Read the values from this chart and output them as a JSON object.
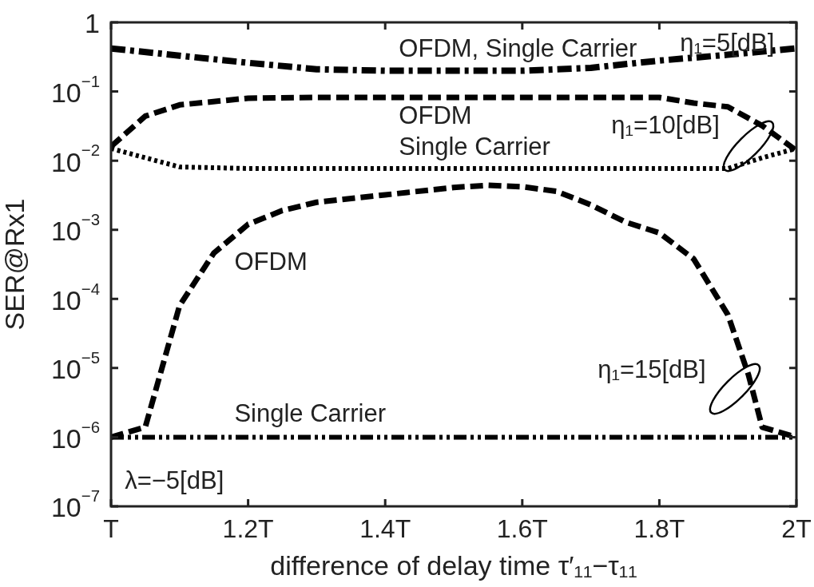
{
  "chart_data": {
    "type": "line",
    "xlabel": "difference of delay time τ′₁₁−τ₁₁",
    "ylabel": "SER@Rx1",
    "log": "y",
    "grid": false,
    "legend": false,
    "marker": "none",
    "xlim": [
      1,
      2
    ],
    "xticks": [
      {
        "value": 1,
        "label": "T"
      },
      {
        "value": 1.2,
        "label": "1.2T"
      },
      {
        "value": 1.4,
        "label": "1.4T"
      },
      {
        "value": 1.6,
        "label": "1.6T"
      },
      {
        "value": 1.8,
        "label": "1.8T"
      },
      {
        "value": 2,
        "label": "2T"
      }
    ],
    "ylim": [
      1e-07,
      1
    ],
    "yticks": [
      {
        "value": 1e-07,
        "label": "10$^{−7}$"
      },
      {
        "value": 1e-06,
        "label": "10$^{−6}$"
      },
      {
        "value": 1e-05,
        "label": "10$^{−5}$"
      },
      {
        "value": 0.0001,
        "label": "10$^{−4}$"
      },
      {
        "value": 0.001,
        "label": "10$^{−3}$"
      },
      {
        "value": 0.01,
        "label": "10$^{−2}$"
      },
      {
        "value": 0.1,
        "label": "10$^{−1}$"
      },
      1
    ],
    "annotations": [
      "η₁=5[dB]",
      "η₁=10[dB]",
      "η₁=15[dB]",
      "λ=−5[dB]"
    ],
    "series": [
      {
        "name": "OFDM, Single Carrier",
        "color": "#000000",
        "line_style": "dashdot",
        "x": [
          1,
          1.1,
          1.2,
          1.3,
          1.4,
          1.5,
          1.6,
          1.7,
          1.8,
          1.9,
          2
        ],
        "values": [
          0.42,
          0.33,
          0.26,
          0.21,
          0.2,
          0.2,
          0.2,
          0.22,
          0.28,
          0.34,
          0.42
        ]
      },
      {
        "name": "OFDM",
        "color": "#000000",
        "line_style": "dashed",
        "x": [
          1,
          1.05,
          1.1,
          1.2,
          1.3,
          1.4,
          1.5,
          1.6,
          1.7,
          1.8,
          1.85,
          1.9,
          1.95,
          2
        ],
        "values": [
          0.016,
          0.044,
          0.064,
          0.08,
          0.082,
          0.082,
          0.082,
          0.082,
          0.082,
          0.082,
          0.068,
          0.06,
          0.032,
          0.014
        ]
      },
      {
        "name": "Single Carrier",
        "color": "#000000",
        "line_style": "dotted",
        "x": [
          1,
          1.05,
          1.1,
          1.2,
          1.4,
          1.6,
          1.8,
          1.9,
          1.95,
          2
        ],
        "values": [
          0.015,
          0.011,
          0.0081,
          0.0077,
          0.0077,
          0.0077,
          0.0077,
          0.0077,
          0.011,
          0.015
        ]
      },
      {
        "name": "OFDM",
        "color": "#000000",
        "line_style": "dashed",
        "x": [
          1,
          1.05,
          1.1,
          1.15,
          1.2,
          1.25,
          1.3,
          1.4,
          1.5,
          1.55,
          1.6,
          1.65,
          1.7,
          1.75,
          1.8,
          1.85,
          1.9,
          1.93,
          1.95,
          2
        ],
        "values": [
          1e-06,
          1.4e-06,
          8e-05,
          0.00046,
          0.0012,
          0.0019,
          0.0025,
          0.0032,
          0.0041,
          0.0044,
          0.0042,
          0.0036,
          0.0023,
          0.0013,
          0.0009,
          0.00038,
          5.9e-05,
          8e-06,
          1.4e-06,
          1e-06
        ]
      },
      {
        "name": "Single Carrier",
        "color": "#000000",
        "line_style": "dashdotdot",
        "x": [
          1,
          1.2,
          1.4,
          1.6,
          1.8,
          2
        ],
        "values": [
          1e-06,
          1e-06,
          1e-06,
          1e-06,
          1e-06,
          1e-06
        ]
      }
    ]
  }
}
